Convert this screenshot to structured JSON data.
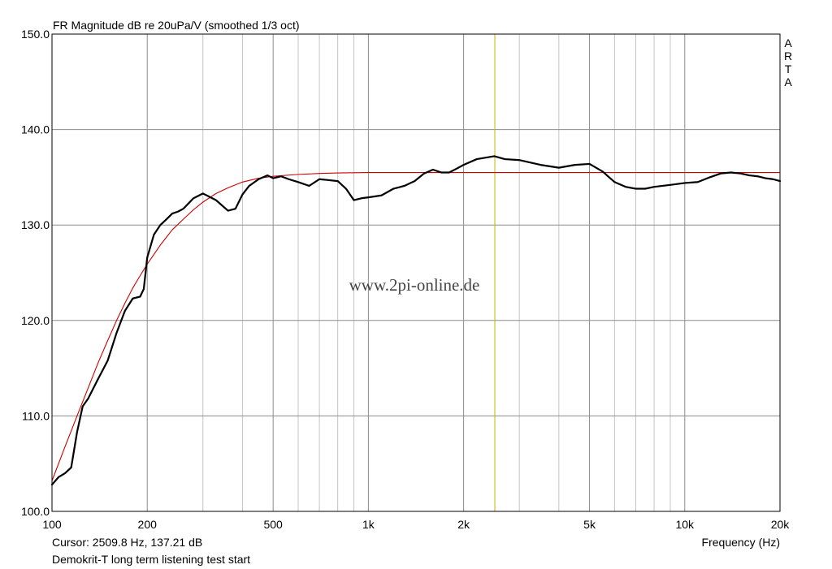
{
  "chart_data": {
    "type": "line",
    "title": "FR Magnitude dB re 20uPa/V (smoothed 1/3 oct)",
    "xlabel": "Frequency (Hz)",
    "ylabel": "",
    "x_scale": "log",
    "xlim": [
      100,
      20000
    ],
    "ylim": [
      100,
      150
    ],
    "grid": true,
    "x_ticks": [
      {
        "value": 100,
        "label": "100"
      },
      {
        "value": 200,
        "label": "200"
      },
      {
        "value": 500,
        "label": "500"
      },
      {
        "value": 1000,
        "label": "1k"
      },
      {
        "value": 2000,
        "label": "2k"
      },
      {
        "value": 5000,
        "label": "5k"
      },
      {
        "value": 10000,
        "label": "10k"
      },
      {
        "value": 20000,
        "label": "20k"
      }
    ],
    "y_ticks": [
      {
        "value": 100,
        "label": "100.0"
      },
      {
        "value": 110,
        "label": "110.0"
      },
      {
        "value": 120,
        "label": "120.0"
      },
      {
        "value": 130,
        "label": "130.0"
      },
      {
        "value": 140,
        "label": "140.0"
      },
      {
        "value": 150,
        "label": "150.0"
      }
    ],
    "cursor": {
      "frequency": 2509.8,
      "level": 137.21,
      "color": "#c8b400"
    },
    "series": [
      {
        "color": "#000000",
        "x": [
          100,
          105,
          110,
          115,
          120,
          125,
          130,
          140,
          150,
          160,
          170,
          180,
          190,
          195,
          200,
          210,
          220,
          230,
          240,
          250,
          260,
          280,
          300,
          330,
          360,
          380,
          400,
          420,
          450,
          480,
          500,
          530,
          560,
          600,
          650,
          700,
          750,
          800,
          850,
          900,
          950,
          1000,
          1100,
          1200,
          1300,
          1400,
          1500,
          1600,
          1700,
          1800,
          1900,
          2000,
          2200,
          2500,
          2700,
          3000,
          3500,
          4000,
          4500,
          5000,
          5500,
          6000,
          6500,
          7000,
          7500,
          8000,
          9000,
          10000,
          11000,
          12000,
          13000,
          14000,
          15000,
          16000,
          17000,
          18000,
          19000,
          20000
        ],
        "y": [
          102.8,
          103.6,
          104.0,
          104.6,
          108.3,
          111.0,
          111.8,
          113.9,
          115.8,
          118.7,
          121.0,
          122.3,
          122.5,
          123.3,
          126.6,
          129.0,
          130.0,
          130.6,
          131.2,
          131.4,
          131.7,
          132.8,
          133.3,
          132.6,
          131.5,
          131.7,
          133.2,
          134.1,
          134.8,
          135.2,
          134.9,
          135.1,
          134.8,
          134.5,
          134.1,
          134.8,
          134.7,
          134.6,
          133.8,
          132.6,
          132.8,
          132.9,
          133.1,
          133.8,
          134.1,
          134.6,
          135.4,
          135.8,
          135.5,
          135.5,
          135.9,
          136.3,
          136.9,
          137.21,
          136.9,
          136.8,
          136.3,
          136.0,
          136.3,
          136.4,
          135.6,
          134.5,
          134.0,
          133.8,
          133.8,
          134.0,
          134.2,
          134.4,
          134.5,
          135.0,
          135.4,
          135.5,
          135.4,
          135.2,
          135.1,
          134.9,
          134.8,
          134.6
        ]
      },
      {
        "color": "#cc0000",
        "x": [
          100,
          110,
          120,
          130,
          140,
          150,
          160,
          170,
          180,
          190,
          200,
          220,
          240,
          260,
          280,
          300,
          330,
          360,
          400,
          450,
          500,
          600,
          700,
          800,
          1000,
          1500,
          2000,
          3000,
          5000,
          10000,
          20000
        ],
        "y": [
          103.2,
          106.8,
          110.0,
          112.9,
          115.6,
          117.9,
          120.0,
          121.8,
          123.4,
          124.7,
          125.9,
          127.9,
          129.5,
          130.6,
          131.6,
          132.4,
          133.3,
          133.9,
          134.5,
          134.9,
          135.1,
          135.3,
          135.4,
          135.45,
          135.5,
          135.5,
          135.5,
          135.5,
          135.5,
          135.5,
          135.5
        ]
      }
    ]
  },
  "annotations": {
    "cursor_readout": "Cursor: 2509.8 Hz, 137.21 dB",
    "footnote": "Demokrit-T long term listening test start",
    "watermark": "www.2pi-online.de",
    "vendor_letters": [
      "A",
      "R",
      "T",
      "A"
    ]
  }
}
